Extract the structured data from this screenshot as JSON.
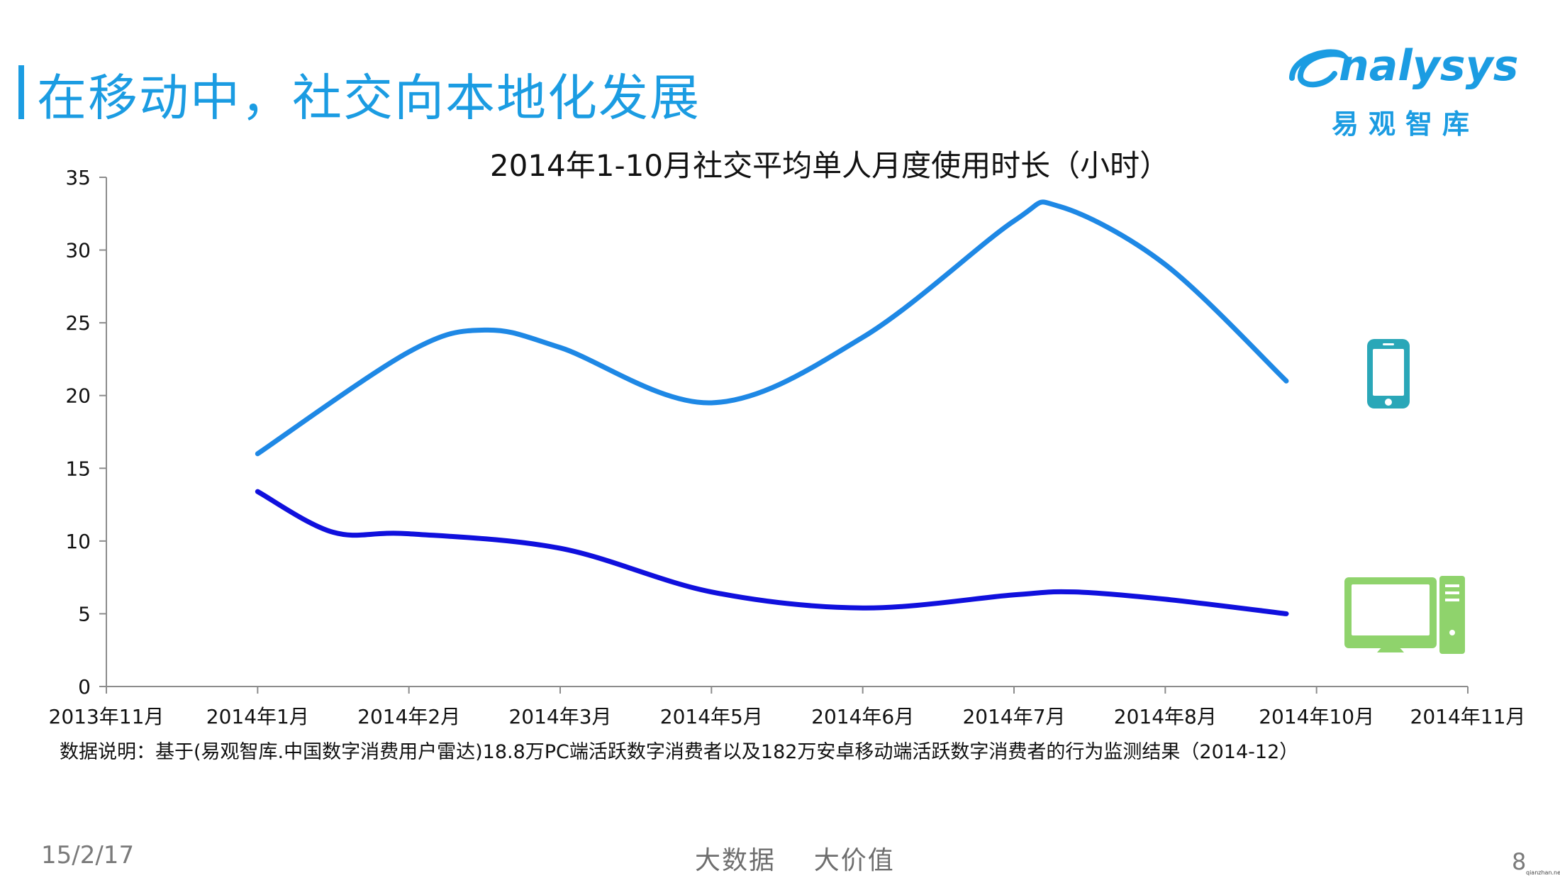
{
  "slide": {
    "title": "在移动中，社交向本地化发展",
    "logo_text": "nalysys",
    "logo_sub": "易观智库",
    "note": "数据说明：基于(易观智库.中国数字消费用户雷达)18.8万PC端活跃数字消费者以及182万安卓移动端活跃数字消费者的行为监测结果（2014-12）",
    "date": "15/2/17",
    "slogan": "大数据    大价值",
    "page_number": "8",
    "watermark": "qianzhan.net",
    "colors": {
      "accent": "#1b9ce2",
      "mobile_line": "#1e88e5",
      "pc_line": "#1010dd",
      "mobile_icon": "#2aa7b8",
      "pc_icon": "#8fd36c"
    },
    "icons": [
      "smartphone-icon",
      "desktop-computer-icon"
    ]
  },
  "chart_data": {
    "type": "line",
    "title": "2014年1-10月社交平均单人月度使用时长（小时）",
    "categories": [
      "2013年11月",
      "2014年1月",
      "2014年2月",
      "2014年3月",
      "2014年5月",
      "2014年6月",
      "2014年7月",
      "2014年8月",
      "2014年10月",
      "2014年11月"
    ],
    "yticks": [
      "0",
      "5",
      "10",
      "15",
      "20",
      "25",
      "30",
      "35"
    ],
    "ylim": [
      0,
      35
    ],
    "x_domain": [
      0,
      9
    ],
    "smooth": true,
    "grid": false,
    "legend": "none (device icons at right end of lines)",
    "series": [
      {
        "icon": "smartphone-icon",
        "color": "#1e88e5",
        "points": [
          [
            1,
            16
          ],
          [
            2,
            23
          ],
          [
            2.5,
            24.5
          ],
          [
            3,
            23.3
          ],
          [
            4,
            19.5
          ],
          [
            5,
            24
          ],
          [
            6,
            32
          ],
          [
            6.3,
            33
          ],
          [
            7,
            29
          ],
          [
            7.8,
            21
          ]
        ]
      },
      {
        "icon": "desktop-computer-icon",
        "color": "#1010dd",
        "points": [
          [
            1,
            13.4
          ],
          [
            1.5,
            10.6
          ],
          [
            2,
            10.5
          ],
          [
            3,
            9.5
          ],
          [
            4,
            6.5
          ],
          [
            5,
            5.4
          ],
          [
            6,
            6.3
          ],
          [
            6.4,
            6.5
          ],
          [
            7,
            6.0
          ],
          [
            7.8,
            5.0
          ]
        ]
      }
    ]
  }
}
